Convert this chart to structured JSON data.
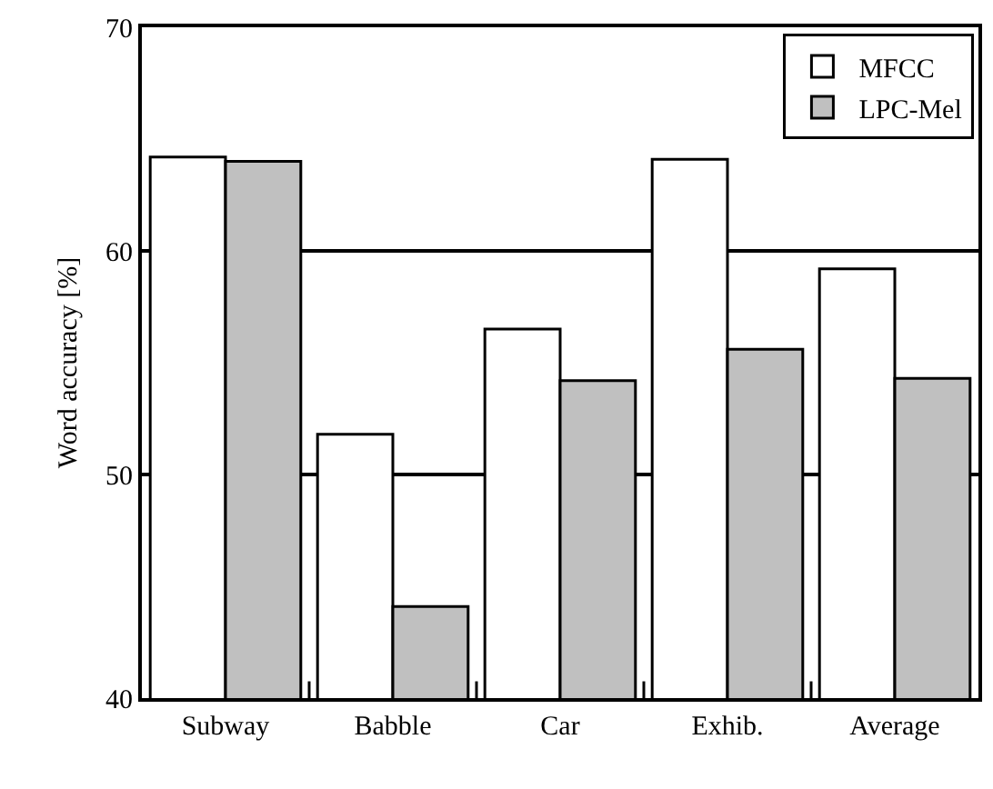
{
  "chart_data": {
    "type": "bar",
    "ylabel": "Word accuracy [%]",
    "categories": [
      "Subway",
      "Babble",
      "Car",
      "Exhib.",
      "Average"
    ],
    "series": [
      {
        "name": "MFCC",
        "color": "#ffffff",
        "values": [
          64.2,
          51.8,
          56.5,
          64.1,
          59.2
        ]
      },
      {
        "name": "LPC-Mel",
        "color": "#c0c0c0",
        "values": [
          64.0,
          44.1,
          54.2,
          55.6,
          54.3
        ]
      }
    ],
    "ylim": [
      40,
      70
    ],
    "yticks": [
      40,
      50,
      60,
      70
    ],
    "grid": "y",
    "legend": "top right"
  }
}
